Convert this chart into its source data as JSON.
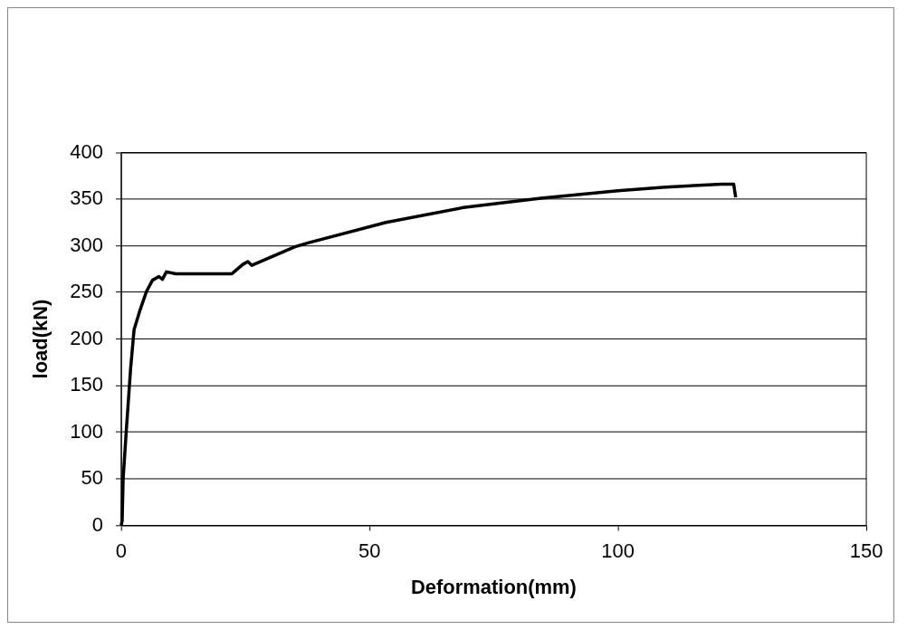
{
  "chart_data": {
    "type": "line",
    "xlabel": "Deformation(mm)",
    "ylabel": "load(kN)",
    "x": [
      0,
      0.2,
      0.4,
      1.0,
      1.9,
      2.6,
      3.8,
      5.1,
      6.3,
      7.6,
      8.3,
      9.1,
      11,
      18,
      22.3,
      24.5,
      25.5,
      26.3,
      35,
      37.6,
      53.3,
      68.9,
      84.5,
      100,
      109.6,
      120.8,
      123.3,
      123.7
    ],
    "values": [
      0,
      5,
      50,
      99,
      168,
      210,
      231,
      251,
      263,
      267,
      264,
      272,
      270,
      270,
      270,
      280,
      283,
      279,
      299,
      303,
      325,
      341,
      351,
      359,
      363,
      366,
      366,
      352
    ],
    "color": "#000000",
    "marker": "none",
    "line_style": "solid",
    "xlim": [
      0,
      150
    ],
    "xticks": [
      0,
      50,
      100,
      150
    ],
    "ylim": [
      0,
      400
    ],
    "yticks": [
      0,
      50,
      100,
      150,
      200,
      250,
      300,
      350,
      400
    ],
    "grid": "y",
    "legend": false
  }
}
